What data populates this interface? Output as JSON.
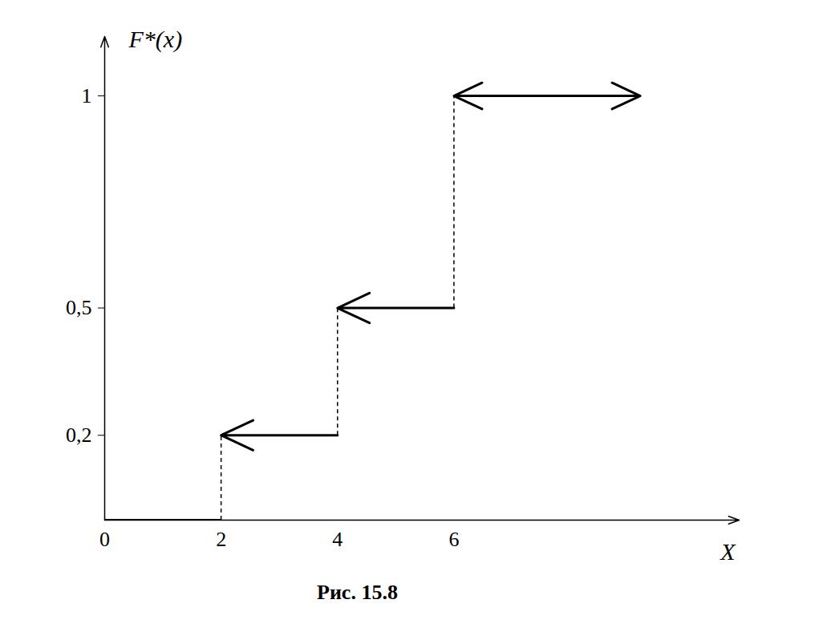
{
  "chart_data": {
    "type": "step",
    "x_label": "X",
    "y_label": "F*(x)",
    "caption": "Рис. 15.8",
    "x_start": [
      0,
      2,
      4,
      6
    ],
    "x_end": [
      2,
      4,
      6,
      9.2
    ],
    "values": [
      0,
      0.2,
      0.5,
      1
    ],
    "color": "#000000",
    "xlim": [
      0,
      10.9
    ],
    "ylim": [
      0,
      1.14
    ],
    "xticks": [
      0,
      2,
      4,
      6
    ],
    "yticks": [
      {
        "value": 0.2,
        "label": "0,2"
      },
      {
        "value": 0.5,
        "label": "0,5"
      },
      1
    ]
  }
}
